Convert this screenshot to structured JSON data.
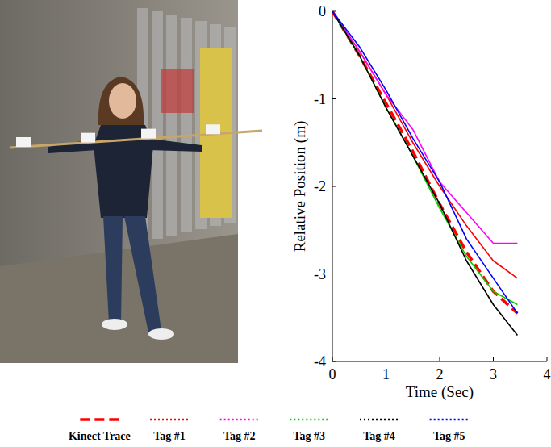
{
  "chart_data": {
    "type": "line",
    "xlabel": "Time (Sec)",
    "ylabel": "Relative Position (m)",
    "x": [
      0,
      0.5,
      1,
      1.5,
      2,
      2.5,
      3,
      3.45
    ],
    "series": [
      {
        "name": "Kinect Trace",
        "color": "#ff0000",
        "line_style": "dashed",
        "values": [
          0,
          -0.5,
          -1.05,
          -1.6,
          -2.2,
          -2.75,
          -3.2,
          -3.45
        ]
      },
      {
        "name": "Tag #1",
        "color": "#ff0000",
        "line_style": "solid",
        "values": [
          0,
          -0.45,
          -0.95,
          -1.5,
          -2.0,
          -2.45,
          -2.85,
          -3.05
        ]
      },
      {
        "name": "Tag #2",
        "color": "#ff00ff",
        "line_style": "solid",
        "values": [
          0,
          -0.45,
          -0.95,
          -1.35,
          -1.95,
          -2.3,
          -2.65,
          -2.65
        ]
      },
      {
        "name": "Tag #3",
        "color": "#00cc00",
        "line_style": "solid",
        "values": [
          0,
          -0.5,
          -1.1,
          -1.65,
          -2.25,
          -2.8,
          -3.2,
          -3.35
        ]
      },
      {
        "name": "Tag #4",
        "color": "#000000",
        "line_style": "solid",
        "values": [
          0,
          -0.5,
          -1.1,
          -1.65,
          -2.2,
          -2.85,
          -3.35,
          -3.7
        ]
      },
      {
        "name": "Tag #5",
        "color": "#0000ff",
        "line_style": "solid",
        "values": [
          0,
          -0.4,
          -0.9,
          -1.45,
          -1.95,
          -2.6,
          -3.05,
          -3.45
        ]
      }
    ],
    "xlim": [
      0,
      4
    ],
    "ylim": [
      -4,
      0
    ],
    "xticks": [
      0,
      1,
      2,
      3,
      4
    ],
    "yticks": [
      -4,
      -3,
      -2,
      -1,
      0
    ],
    "legend": "bottom"
  }
}
